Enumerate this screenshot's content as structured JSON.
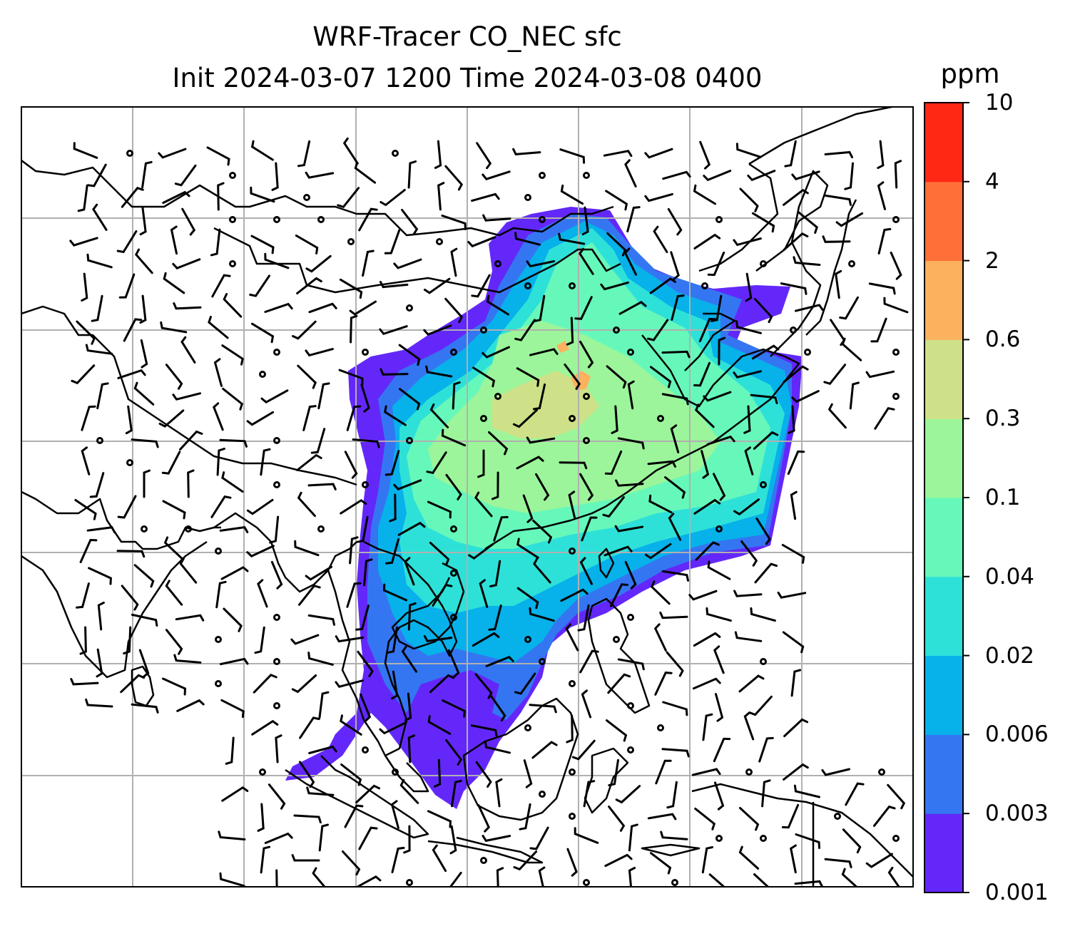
{
  "title": {
    "line1": "WRF-Tracer CO_NEC sfc",
    "line2": "Init 2024-03-07 1200 Time 2024-03-08 0400"
  },
  "colorbar": {
    "unit": "ppm",
    "levels": [
      "0.001",
      "0.003",
      "0.006",
      "0.02",
      "0.04",
      "0.1",
      "0.3",
      "0.6",
      "2",
      "4",
      "10"
    ],
    "colors": [
      "#6328f9",
      "#3476f2",
      "#07b1ea",
      "#2ee1d8",
      "#66f8ba",
      "#9cf59a",
      "#cfe188",
      "#fcb15f",
      "#ff7038",
      "#ff2815"
    ]
  },
  "map": {
    "layers": [
      "coastlines",
      "gridlines",
      "wind-barbs",
      "co-tracer-concentration"
    ],
    "gridline_color": "#b0b0b0",
    "coastline_color": "#000000"
  }
}
